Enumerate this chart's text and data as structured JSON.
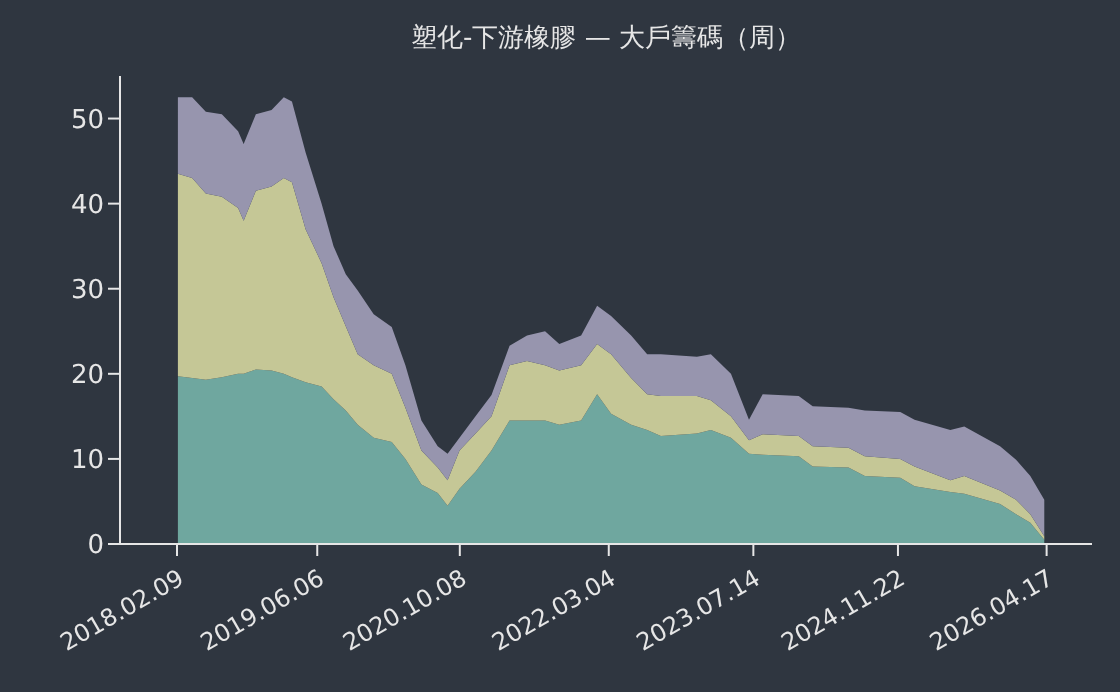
{
  "chart_data": {
    "type": "area",
    "stacked": true,
    "title": "塑化-下游橡膠 — 大戶籌碼（周）",
    "x": [
      "2018-02-12",
      "2018-04-02",
      "2018-05-19",
      "2018-07-13",
      "2018-09-07",
      "2018-09-26",
      "2018-11-07",
      "2018-12-31",
      "2019-02-11",
      "2019-03-11",
      "2019-04-27",
      "2019-06-21",
      "2019-08-01",
      "2019-09-12",
      "2019-10-23",
      "2019-12-17",
      "2020-02-17",
      "2020-04-04",
      "2020-05-29",
      "2020-07-24",
      "2020-08-27",
      "2020-10-07",
      "2020-12-01",
      "2021-01-25",
      "2021-03-28",
      "2021-05-27",
      "2021-07-28",
      "2021-09-15",
      "2021-11-29",
      "2022-01-23",
      "2022-03-12",
      "2022-05-20",
      "2022-07-14",
      "2022-08-30",
      "2023-01-01",
      "2023-02-18",
      "2023-04-28",
      "2023-06-29",
      "2023-08-15",
      "2023-12-17",
      "2024-02-03",
      "2024-06-05",
      "2024-07-31",
      "2024-11-30",
      "2025-01-18",
      "2025-05-21",
      "2025-07-08",
      "2025-11-08",
      "2026-01-02",
      "2026-02-20",
      "2026-04-09"
    ],
    "series": [
      {
        "color": "#6fa79f",
        "values": [
          19.7,
          19.5,
          19.3,
          19.6,
          20,
          20,
          20.5,
          20.4,
          20,
          19.6,
          19,
          18.5,
          17,
          15.7,
          14,
          12.5,
          12,
          10,
          7,
          6,
          4.5,
          6.5,
          8.5,
          11,
          14.5,
          14.5,
          14.5,
          14,
          14.5,
          17.6,
          15.3,
          14,
          13.4,
          12.7,
          13,
          13.4,
          12.5,
          10.6,
          10.5,
          10.3,
          9.1,
          9,
          8,
          7.8,
          6.8,
          6.1,
          5.9,
          4.7,
          3.5,
          2.5,
          0.5
        ]
      },
      {
        "color": "#c5c796",
        "values": [
          23.8,
          23.5,
          21.9,
          21.2,
          19.5,
          18,
          21,
          21.6,
          23,
          22.9,
          18,
          14.5,
          12,
          9.9,
          8.3,
          8.5,
          8,
          6,
          4,
          3,
          3,
          4.5,
          4.5,
          4,
          6.5,
          7,
          6.5,
          6.4,
          6.5,
          5.9,
          7,
          5.5,
          4.2,
          4.7,
          4.4,
          3.5,
          2.5,
          1.6,
          2.4,
          2.4,
          2.4,
          2.3,
          2.3,
          2.2,
          2.3,
          1.4,
          2.1,
          1.6,
          1.7,
          1,
          0.4
        ]
      },
      {
        "color": "#9795ae",
        "values": [
          9,
          9.5,
          9.6,
          9.7,
          9,
          9,
          9,
          9,
          9.5,
          9.5,
          9,
          7,
          6,
          6.1,
          7.5,
          6,
          5.5,
          5,
          3.5,
          2.5,
          3.1,
          1.5,
          2,
          2.5,
          2.3,
          3,
          4,
          3.1,
          3.5,
          4.5,
          4.5,
          5,
          4.7,
          4.9,
          4.6,
          5.4,
          5,
          2.4,
          4.7,
          4.7,
          4.7,
          4.7,
          5.4,
          5.5,
          5.5,
          5.9,
          5.8,
          5.2,
          4.7,
          4.5,
          4.3
        ]
      }
    ],
    "xlim": [
      "2017-07-28",
      "2026-09-20"
    ],
    "xticks": [
      {
        "value": "2018-02-09",
        "label": "2018.02.09"
      },
      {
        "value": "2019-06-06",
        "label": "2019.06.06"
      },
      {
        "value": "2020-10-08",
        "label": "2020.10.08"
      },
      {
        "value": "2022-03-04",
        "label": "2022.03.04"
      },
      {
        "value": "2023-07-14",
        "label": "2023.07.14"
      },
      {
        "value": "2024-11-22",
        "label": "2024.11.22"
      },
      {
        "value": "2026-04-17",
        "label": "2026.04.17"
      }
    ],
    "ylim": [
      0,
      55
    ],
    "yticks": [
      0,
      10,
      20,
      30,
      40,
      50
    ]
  }
}
